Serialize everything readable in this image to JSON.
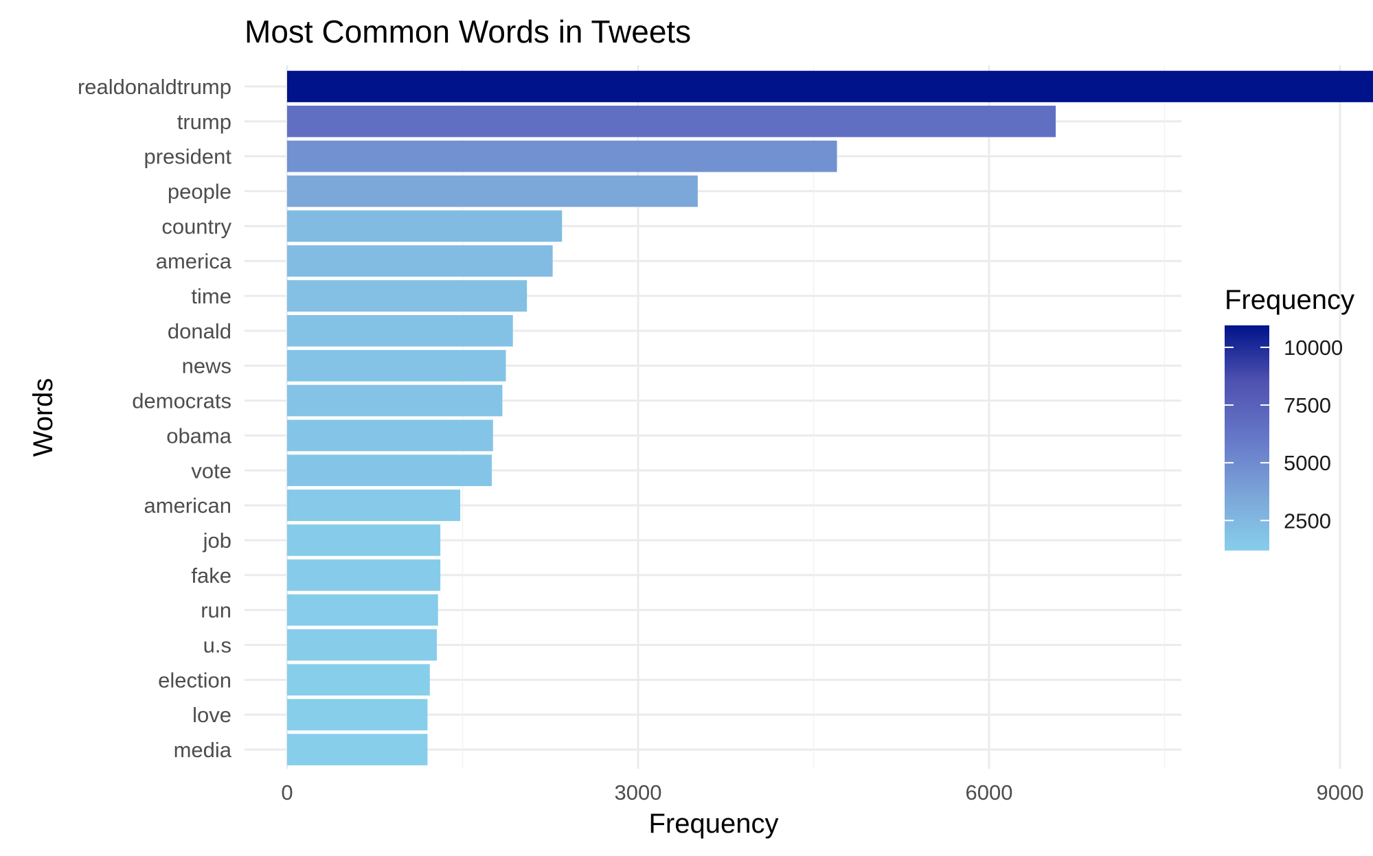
{
  "chart_data": {
    "type": "bar",
    "orientation": "horizontal",
    "title": "Most Common Words in Tweets",
    "xlabel": "Frequency",
    "ylabel": "Words",
    "xlim": [
      0,
      11000
    ],
    "x_ticks": [
      0,
      3000,
      6000,
      9000
    ],
    "x_tick_labels": [
      "0",
      "3000",
      "6000",
      "9000"
    ],
    "grid": true,
    "categories": [
      "realdonaldtrump",
      "trump",
      "president",
      "people",
      "country",
      "america",
      "time",
      "donald",
      "news",
      "democrats",
      "obama",
      "vote",
      "american",
      "job",
      "fake",
      "run",
      "u.s",
      "election",
      "love",
      "media"
    ],
    "values": [
      10950,
      6570,
      4700,
      3510,
      2350,
      2270,
      2050,
      1930,
      1870,
      1840,
      1760,
      1750,
      1480,
      1310,
      1310,
      1290,
      1280,
      1220,
      1200,
      1200
    ],
    "legend": {
      "title": "Frequency",
      "placement": "right",
      "type": "colorbar",
      "ticks": [
        2500,
        5000,
        7500,
        10000
      ],
      "tick_labels": [
        "2500",
        "5000",
        "7500",
        "10000"
      ],
      "range": [
        1200,
        10950
      ],
      "colors": [
        "#87ceeb",
        "#7ba5d8",
        "#6677c8",
        "#4f52b0",
        "#00138a"
      ]
    }
  }
}
